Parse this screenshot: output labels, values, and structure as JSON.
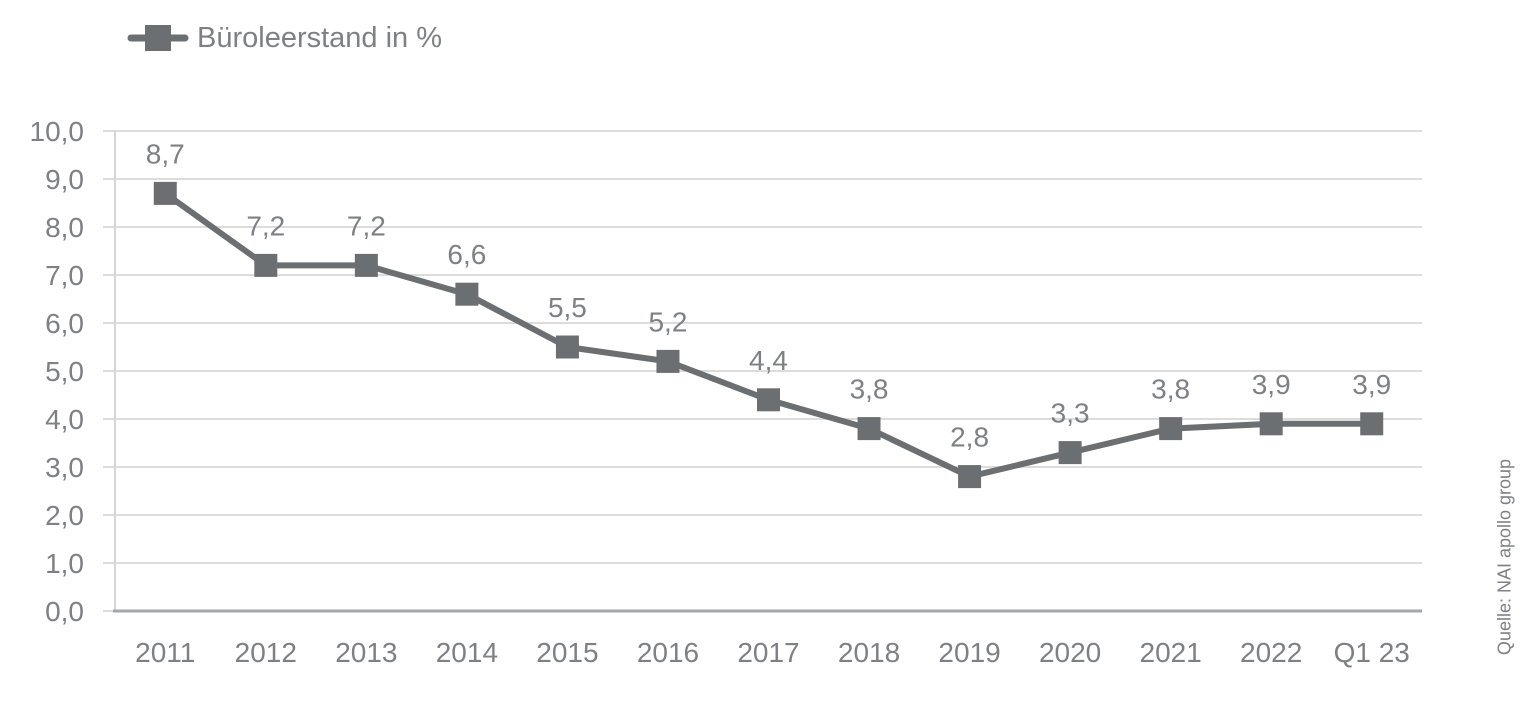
{
  "legend": {
    "label": "Büroleerstand in %"
  },
  "source_note": "Quelle: NAI apollo group",
  "colors": {
    "series": "#6c6f72",
    "grid": "#dcdcdd",
    "y_axis_line": "#d5d6d7",
    "x_axis_line": "#a6a7a9",
    "text": "#7e8083",
    "background": "#ffffff"
  },
  "chart_data": {
    "type": "line",
    "title": "Büroleerstand in %",
    "categories": [
      "2011",
      "2012",
      "2013",
      "2014",
      "2015",
      "2016",
      "2017",
      "2018",
      "2019",
      "2020",
      "2021",
      "2022",
      "Q1 23"
    ],
    "series": [
      {
        "name": "Büroleerstand in %",
        "values": [
          8.7,
          7.2,
          7.2,
          6.6,
          5.5,
          5.2,
          4.4,
          3.8,
          2.8,
          3.3,
          3.8,
          3.9,
          3.9
        ],
        "point_labels": [
          "8,7",
          "7,2",
          "7,2",
          "6,6",
          "5,5",
          "5,2",
          "4,4",
          "3,8",
          "2,8",
          "3,3",
          "3,8",
          "3,9",
          "3,9"
        ]
      }
    ],
    "xlabel": "",
    "ylabel": "",
    "ylim": [
      0,
      10
    ],
    "ytick_step": 1,
    "ytick_labels": [
      "0,0",
      "1,0",
      "2,0",
      "3,0",
      "4,0",
      "5,0",
      "6,0",
      "7,0",
      "8,0",
      "9,0",
      "10,0"
    ],
    "grid": "horizontal",
    "legend_position": "top-left",
    "marker": "square",
    "decimal_separator": ","
  }
}
